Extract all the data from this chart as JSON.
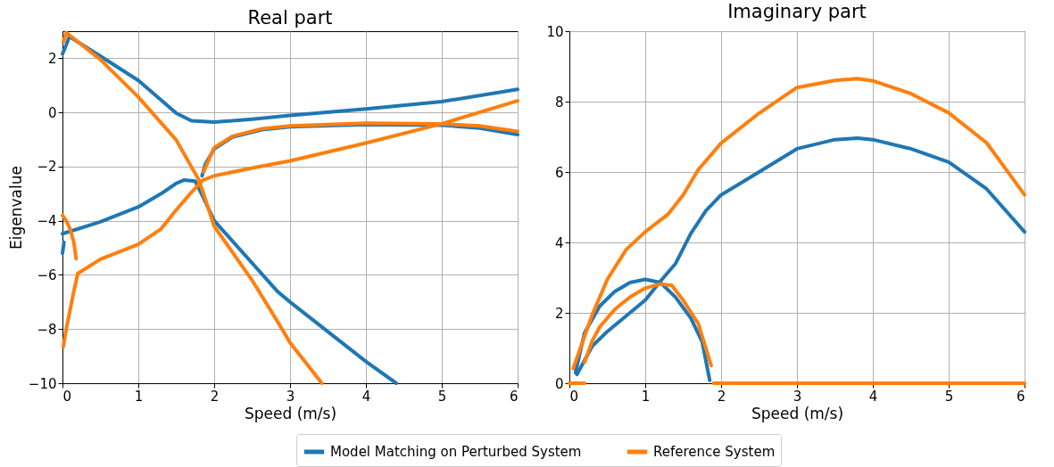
{
  "chart_data": [
    {
      "type": "line",
      "title": "Real part",
      "xlabel": "Speed (m/s)",
      "ylabel": "Eigenvalue",
      "xlim": [
        0,
        6
      ],
      "ylim": [
        -10,
        3
      ],
      "xticks": [
        0,
        1,
        2,
        3,
        4,
        5,
        6
      ],
      "yticks": [
        -10,
        -8,
        -6,
        -4,
        -2,
        0,
        2
      ],
      "grid": true,
      "legend": "bottom",
      "series": [
        {
          "name": "Model Matching on Perturbed System",
          "color": "#1f77b4",
          "x": [
            0,
            0.05,
            0.09,
            0.5,
            1,
            1.5,
            1.7,
            2,
            2.5,
            3,
            4,
            5,
            6
          ],
          "values": [
            2.16,
            2.5,
            2.8,
            2.08,
            1.18,
            -0.03,
            -0.31,
            -0.36,
            -0.25,
            -0.11,
            0.13,
            0.4,
            0.85
          ]
        },
        {
          "color": "#1f77b4",
          "x": [
            0,
            0.5,
            1,
            1.3,
            1.5,
            1.6,
            1.75,
            1.85,
            2,
            2.83,
            3,
            4,
            4.4
          ],
          "values": [
            -4.48,
            -4.04,
            -3.49,
            -3.0,
            -2.62,
            -2.5,
            -2.54,
            -3.1,
            -4.0,
            -6.6,
            -7.0,
            -9.2,
            -10
          ]
        },
        {
          "color": "#1f77b4",
          "x": [
            1.84,
            1.885,
            2,
            2.24,
            2.63,
            3,
            4,
            5,
            5.5,
            6
          ],
          "values": [
            -2.34,
            -1.9,
            -1.35,
            -0.91,
            -0.64,
            -0.53,
            -0.45,
            -0.47,
            -0.58,
            -0.82
          ]
        },
        {
          "color": "#1f77b4",
          "x": [
            0,
            0.02
          ],
          "values": [
            -5.2,
            -4.8
          ]
        },
        {
          "name": "Reference System",
          "color": "#ff7f0e",
          "x": [
            0.01,
            0.05,
            0.5,
            1,
            1.5,
            1.8,
            2,
            2.5,
            2.83,
            3,
            3.42
          ],
          "values": [
            2.6,
            2.95,
            1.95,
            0.57,
            -1.02,
            -2.5,
            -4.2,
            -6.2,
            -7.7,
            -8.5,
            -10
          ]
        },
        {
          "color": "#ff7f0e",
          "x": [
            0.2,
            0.5,
            1,
            1.3,
            1.5,
            1.7,
            1.85,
            2,
            2.5,
            3,
            4,
            5,
            6
          ],
          "values": [
            -5.95,
            -5.42,
            -4.87,
            -4.3,
            -3.6,
            -2.95,
            -2.5,
            -2.34,
            -2.05,
            -1.79,
            -1.13,
            -0.42,
            0.43
          ]
        },
        {
          "color": "#ff7f0e",
          "x": [
            1.86,
            2,
            2.24,
            2.63,
            3,
            4,
            5,
            5.5,
            6
          ],
          "values": [
            -2.2,
            -1.3,
            -0.88,
            -0.6,
            -0.5,
            -0.4,
            -0.42,
            -0.5,
            -0.7
          ]
        },
        {
          "color": "#ff7f0e",
          "x": [
            0,
            0.05,
            0.1,
            0.15,
            0.18
          ],
          "values": [
            -3.8,
            -4.0,
            -4.3,
            -4.8,
            -5.4
          ]
        },
        {
          "color": "#ff7f0e",
          "x": [
            0.01,
            0.05,
            0.1,
            0.15,
            0.2
          ],
          "values": [
            -8.66,
            -8.0,
            -7.3,
            -6.6,
            -5.97
          ]
        }
      ]
    },
    {
      "type": "line",
      "title": "Imaginary part",
      "xlabel": "Speed (m/s)",
      "xlim": [
        0,
        6
      ],
      "ylim": [
        0,
        10
      ],
      "xticks": [
        0,
        1,
        2,
        3,
        4,
        5,
        6
      ],
      "yticks": [
        0,
        2,
        4,
        6,
        8,
        10
      ],
      "grid": true,
      "legend": "bottom",
      "series": [
        {
          "name": "Model Matching on Perturbed System",
          "color": "#1f77b4",
          "x": [
            0.1,
            0.3,
            0.5,
            1,
            1.2,
            1.4,
            1.6,
            1.8,
            2,
            2.5,
            3,
            3.5,
            3.8,
            4,
            4.5,
            5,
            5.5,
            6
          ],
          "values": [
            0.25,
            1.05,
            1.47,
            2.36,
            2.9,
            3.4,
            4.25,
            4.9,
            5.35,
            6.0,
            6.66,
            6.92,
            6.96,
            6.92,
            6.66,
            6.28,
            5.52,
            4.3
          ]
        },
        {
          "color": "#1f77b4",
          "x": [
            0.08,
            0.2,
            0.4,
            0.6,
            0.8,
            1,
            1.2,
            1.4,
            1.6,
            1.75,
            1.85
          ],
          "values": [
            0.3,
            1.43,
            2.19,
            2.61,
            2.86,
            2.95,
            2.86,
            2.44,
            1.85,
            1.18,
            0.08
          ]
        },
        {
          "name": "Reference System",
          "color": "#ff7f0e",
          "x": [
            0.05,
            0.3,
            0.5,
            0.75,
            1,
            1.3,
            1.5,
            1.7,
            2,
            2.5,
            3,
            3.5,
            3.8,
            4,
            4.5,
            5,
            5.5,
            6
          ],
          "values": [
            0.42,
            1.94,
            2.95,
            3.8,
            4.3,
            4.8,
            5.35,
            6.07,
            6.82,
            7.67,
            8.4,
            8.6,
            8.65,
            8.59,
            8.23,
            7.68,
            6.83,
            5.35
          ]
        },
        {
          "color": "#ff7f0e",
          "x": [
            0.2,
            0.3,
            0.4,
            0.6,
            0.8,
            1,
            1.2,
            1.35,
            1.5,
            1.7,
            1.87
          ],
          "values": [
            0.59,
            1.2,
            1.6,
            2.1,
            2.45,
            2.7,
            2.82,
            2.78,
            2.36,
            1.69,
            0.5
          ]
        },
        {
          "color": "#ff7f0e",
          "x": [
            1.9,
            6
          ],
          "values": [
            0,
            0
          ]
        },
        {
          "color": "#ff7f0e",
          "x": [
            0,
            0.2
          ],
          "values": [
            0,
            0
          ]
        }
      ]
    }
  ]
}
